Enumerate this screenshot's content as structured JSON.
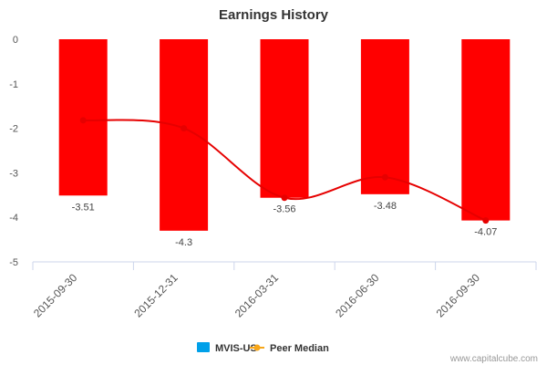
{
  "chart_data": {
    "type": "bar",
    "title": "Earnings History",
    "categories": [
      "2015-09-30",
      "2015-12-31",
      "2016-03-31",
      "2016-06-30",
      "2016-09-30"
    ],
    "series": [
      {
        "name": "MVIS-US",
        "type": "bar",
        "values": [
          -3.51,
          -4.3,
          -3.56,
          -3.48,
          -4.07
        ],
        "color": "#ff0000"
      },
      {
        "name": "Peer Median",
        "type": "line",
        "values": [
          -1.82,
          -2.0,
          -3.56,
          -3.1,
          -4.07
        ],
        "color": "#e60000"
      }
    ],
    "data_labels": [
      "-3.51",
      "-4.3",
      "-3.56",
      "-3.48",
      "-4.07"
    ],
    "y_ticks": [
      "0",
      "-1",
      "-2",
      "-3",
      "-4",
      "-5"
    ],
    "ylim": [
      -5,
      0
    ],
    "grid": false,
    "legend": {
      "position": "bottom",
      "items": [
        {
          "label": "MVIS-US",
          "color": "#00a0e9",
          "shape": "square"
        },
        {
          "label": "Peer Median",
          "color": "#f7a71b",
          "shape": "line-dot"
        }
      ]
    }
  },
  "credit": "www.capitalcube.com"
}
